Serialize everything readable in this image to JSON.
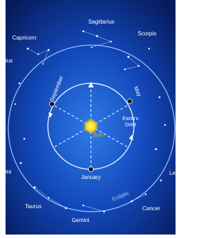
{
  "labels": {
    "constellations": [
      "Sagittarius",
      "Scorpio",
      "Capricorn",
      "ius",
      "es",
      "Le",
      "Cancer",
      "Taurus",
      "Gemini"
    ],
    "months": [
      "September",
      "May",
      "January"
    ],
    "orbit": "Earth's Orbit",
    "sun": "Sun",
    "ecliptic": "Ecliptic"
  }
}
